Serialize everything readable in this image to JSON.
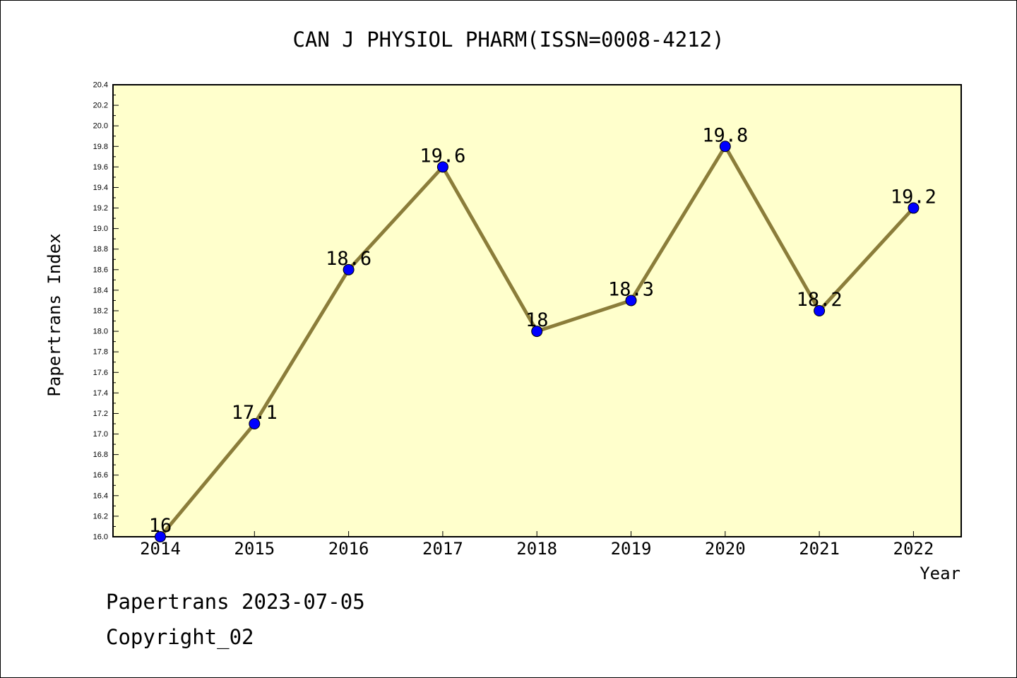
{
  "chart_data": {
    "type": "line",
    "title": "CAN J PHYSIOL PHARM(ISSN=0008-4212)",
    "xlabel": "Year",
    "ylabel": "Papertrans Index",
    "categories": [
      "2014",
      "2015",
      "2016",
      "2017",
      "2018",
      "2019",
      "2020",
      "2021",
      "2022"
    ],
    "values": [
      16,
      17.1,
      18.6,
      19.6,
      18,
      18.3,
      19.8,
      18.2,
      19.2
    ],
    "data_labels": [
      "16",
      "17.1",
      "18.6",
      "19.6",
      "18",
      "18.3",
      "19.8",
      "18.2",
      "19.2"
    ],
    "ylim": [
      16.0,
      20.4
    ],
    "ytick_labels": [
      "16.0",
      "16.2",
      "16.4",
      "16.6",
      "16.8",
      "17.0",
      "17.2",
      "17.4",
      "17.6",
      "17.8",
      "18.0",
      "18.2",
      "18.4",
      "18.6",
      "18.8",
      "19.0",
      "19.2",
      "19.4",
      "19.6",
      "19.8",
      "20.0",
      "20.2",
      "20.4"
    ],
    "grid": false,
    "legend": "none",
    "colors": {
      "plot_background": "#ffffcc",
      "line": "#8b7d3a",
      "marker": "#0000ff"
    }
  },
  "footer": {
    "date_line": "Papertrans 2023-07-05",
    "copyright": "Copyright_02"
  }
}
